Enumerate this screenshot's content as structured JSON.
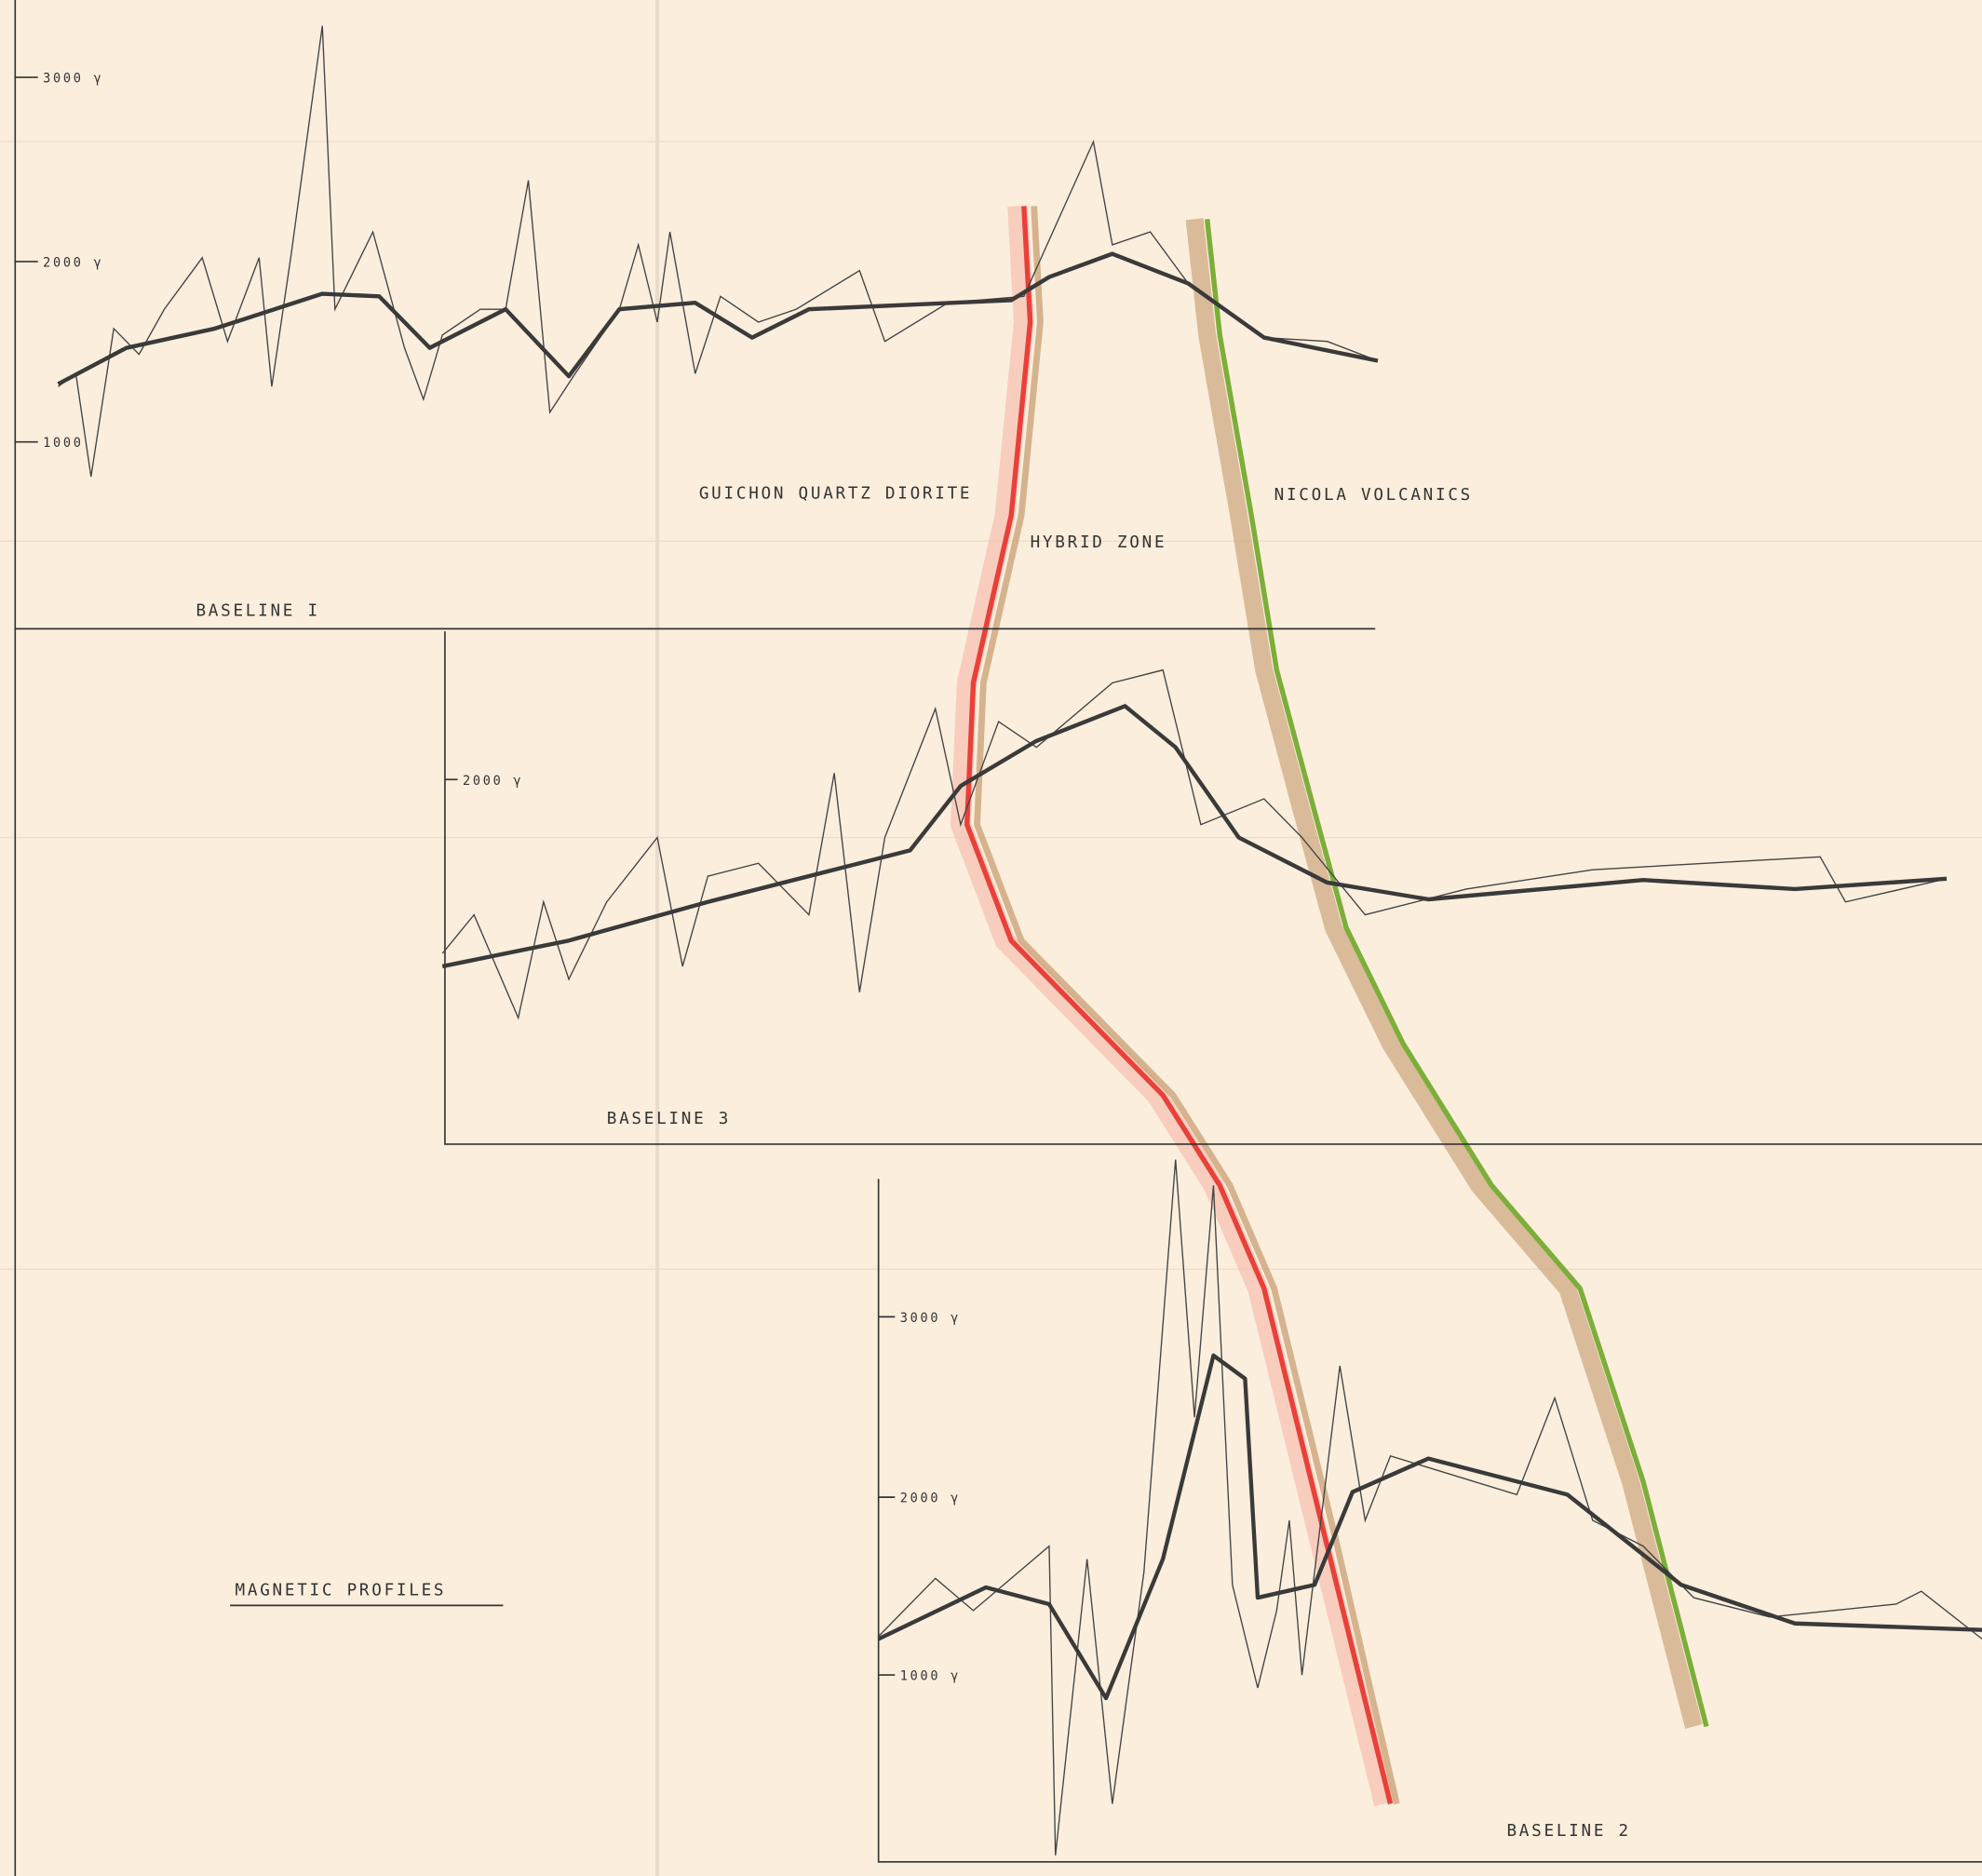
{
  "title": "MAGNETIC PROFILES",
  "zones": [
    "GUICHON QUARTZ DIORITE",
    "HYBRID ZONE",
    "NICOLA VOLCANICS"
  ],
  "profiles": [
    {
      "baseline": "BASELINE I",
      "axis_labels": [
        "3000 γ",
        "2000 γ",
        "1000"
      ]
    },
    {
      "baseline": "BASELINE 3",
      "axis_labels": [
        "2000 γ"
      ]
    },
    {
      "baseline": "BASELINE 2",
      "axis_labels": [
        "3000 γ",
        "2000 γ",
        "1000 γ"
      ]
    }
  ]
}
